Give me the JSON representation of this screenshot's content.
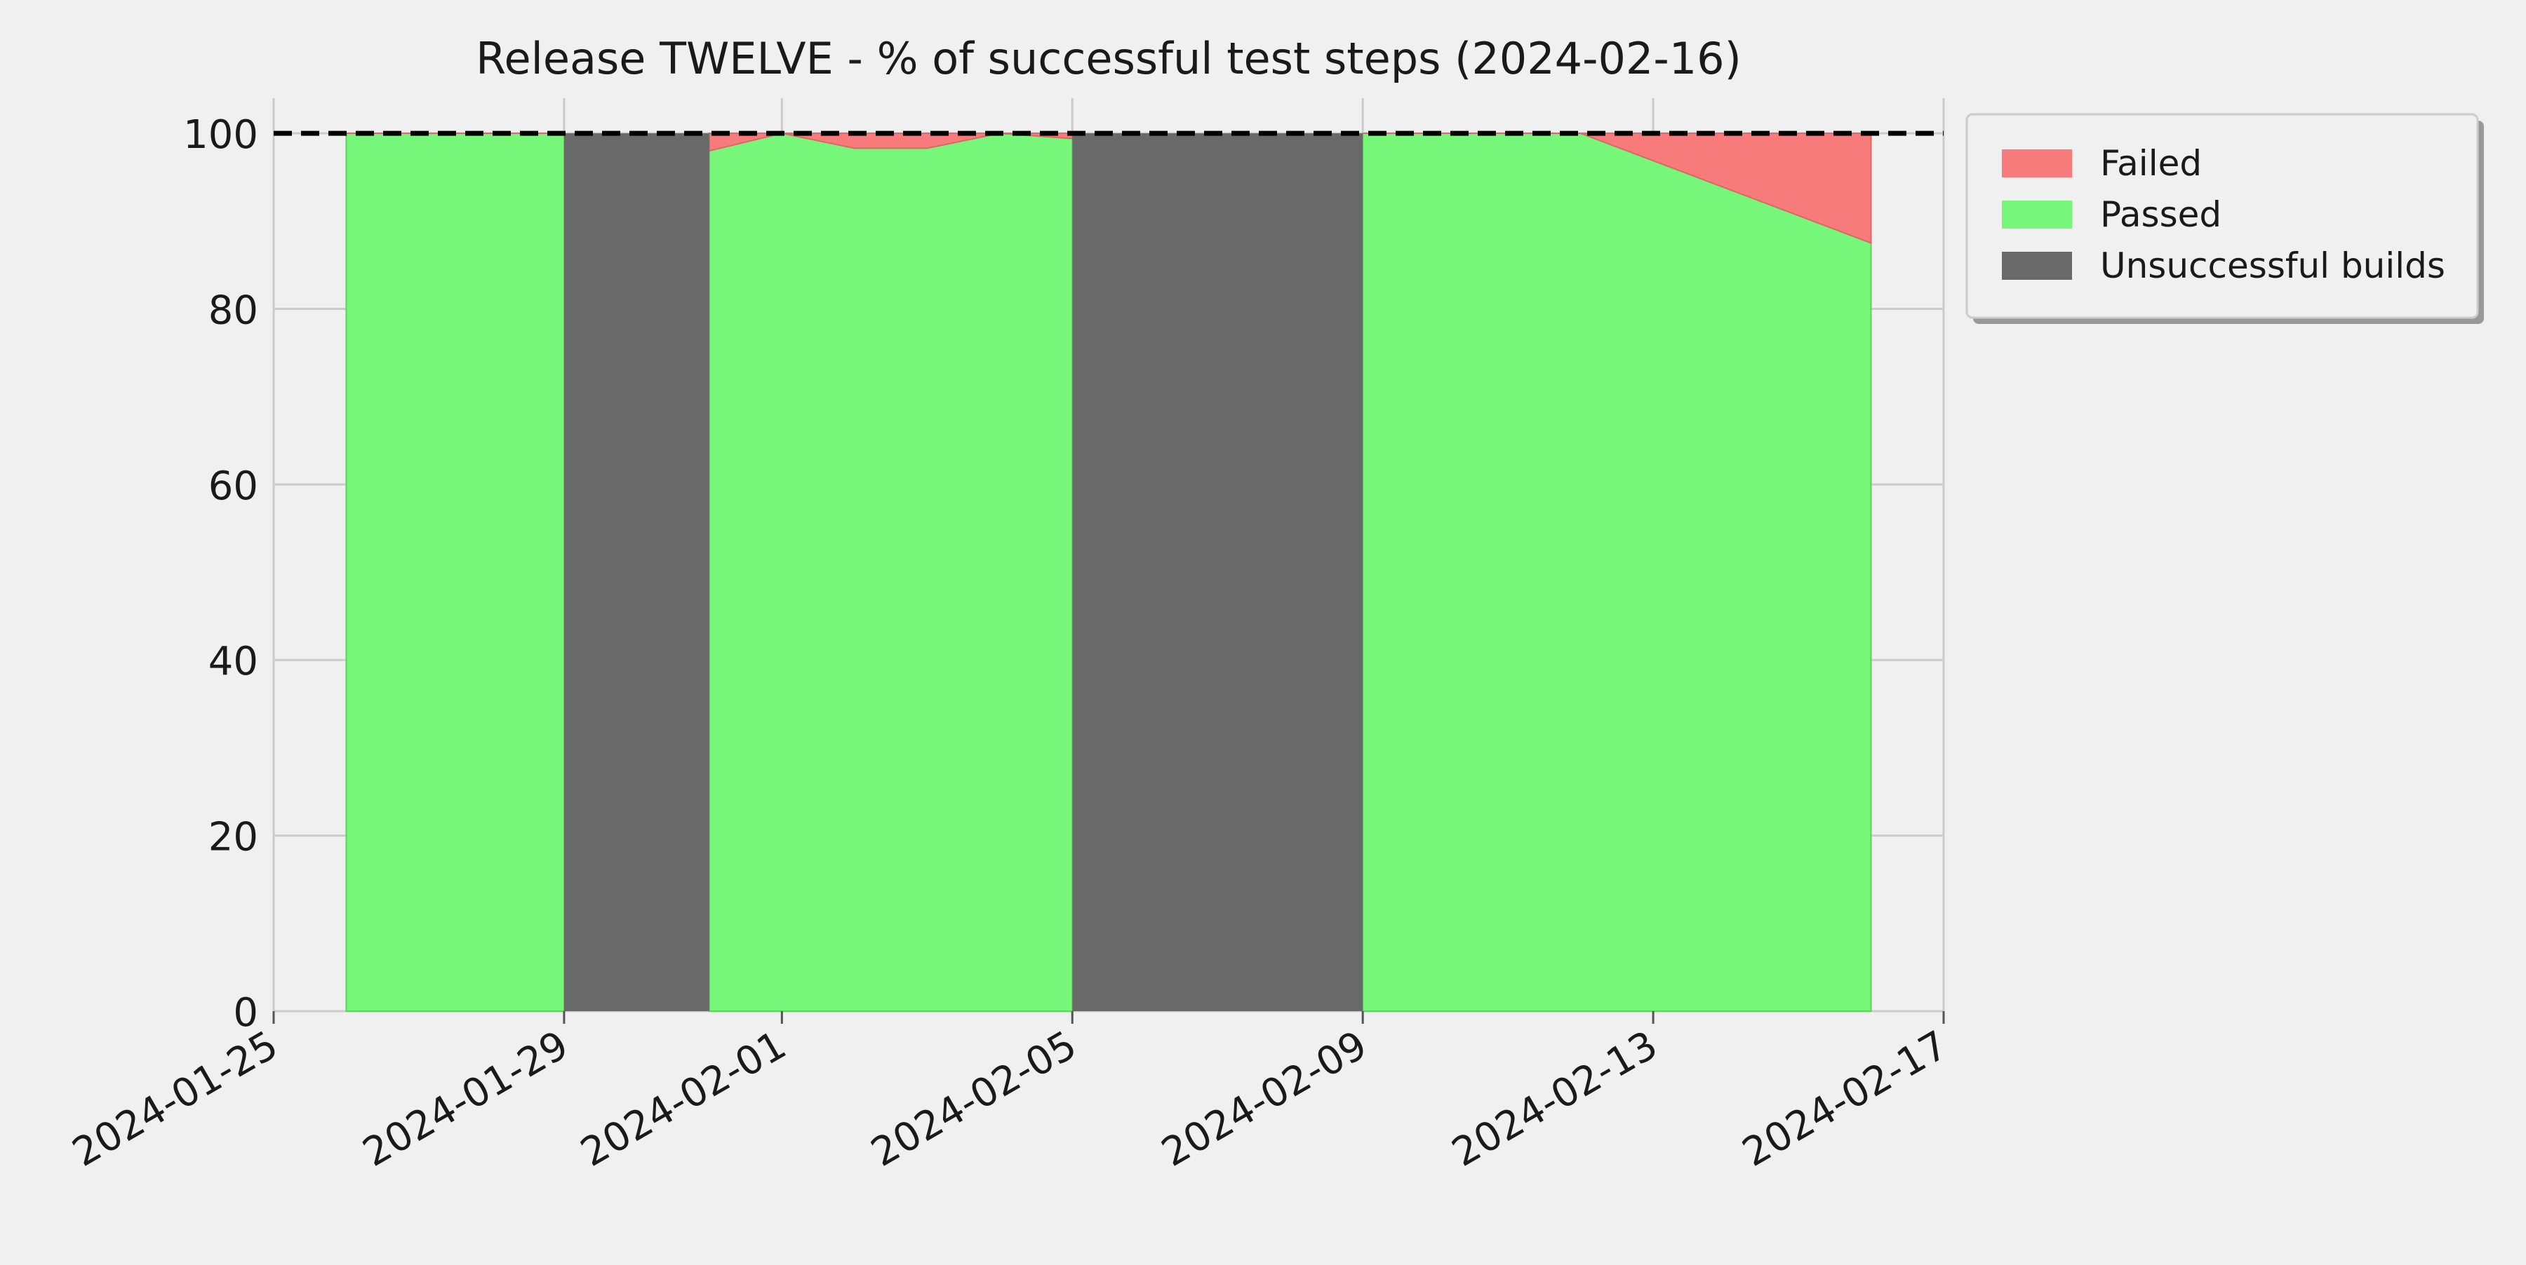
{
  "chart_data": {
    "type": "area",
    "title": "Release TWELVE - % of successful test steps (2024-02-16)",
    "xlabel": "",
    "ylabel": "",
    "x_ticks": [
      "2024-01-25",
      "2024-01-29",
      "2024-02-01",
      "2024-02-05",
      "2024-02-09",
      "2024-02-13",
      "2024-02-17"
    ],
    "y_ticks": [
      0,
      20,
      40,
      60,
      80,
      100
    ],
    "xlim": [
      "2024-01-25",
      "2024-02-17"
    ],
    "ylim": [
      0,
      104
    ],
    "grid": true,
    "legend_position": "upper right, outside plot",
    "reference_line": {
      "y": 100,
      "style": "dashed",
      "color": "#000000"
    },
    "legend": [
      "Failed",
      "Passed",
      "Unsuccessful builds"
    ],
    "colors": {
      "failed": "#f87b7b",
      "passed": "#77f77a",
      "unsuccessful": "#696969",
      "background": "#f0f0f0",
      "grid": "#cbcbcb"
    },
    "series": [
      {
        "name": "Passed",
        "segments": [
          [
            {
              "x": "2024-01-26",
              "y": 100
            },
            {
              "x": "2024-01-29",
              "y": 100
            }
          ],
          [
            {
              "x": "2024-01-31",
              "y": 98
            },
            {
              "x": "2024-02-01",
              "y": 100
            },
            {
              "x": "2024-02-02",
              "y": 98.3
            },
            {
              "x": "2024-02-03",
              "y": 98.3
            },
            {
              "x": "2024-02-04",
              "y": 100
            },
            {
              "x": "2024-02-05",
              "y": 99.4
            }
          ],
          [
            {
              "x": "2024-02-09",
              "y": 100
            },
            {
              "x": "2024-02-12",
              "y": 100
            },
            {
              "x": "2024-02-16",
              "y": 87.5
            }
          ]
        ]
      },
      {
        "name": "Failed",
        "segments": [
          [
            {
              "x": "2024-01-26",
              "y": 0
            },
            {
              "x": "2024-01-29",
              "y": 0
            }
          ],
          [
            {
              "x": "2024-01-31",
              "y": 2
            },
            {
              "x": "2024-02-01",
              "y": 0
            },
            {
              "x": "2024-02-02",
              "y": 1.7
            },
            {
              "x": "2024-02-03",
              "y": 1.7
            },
            {
              "x": "2024-02-04",
              "y": 0
            },
            {
              "x": "2024-02-05",
              "y": 0.6
            }
          ],
          [
            {
              "x": "2024-02-09",
              "y": 0
            },
            {
              "x": "2024-02-12",
              "y": 0
            },
            {
              "x": "2024-02-16",
              "y": 12.5
            }
          ]
        ]
      },
      {
        "name": "Unsuccessful builds",
        "ranges": [
          {
            "start": "2024-01-29",
            "end": "2024-01-31",
            "y": 100
          },
          {
            "start": "2024-02-05",
            "end": "2024-02-09",
            "y": 100
          }
        ]
      }
    ]
  }
}
